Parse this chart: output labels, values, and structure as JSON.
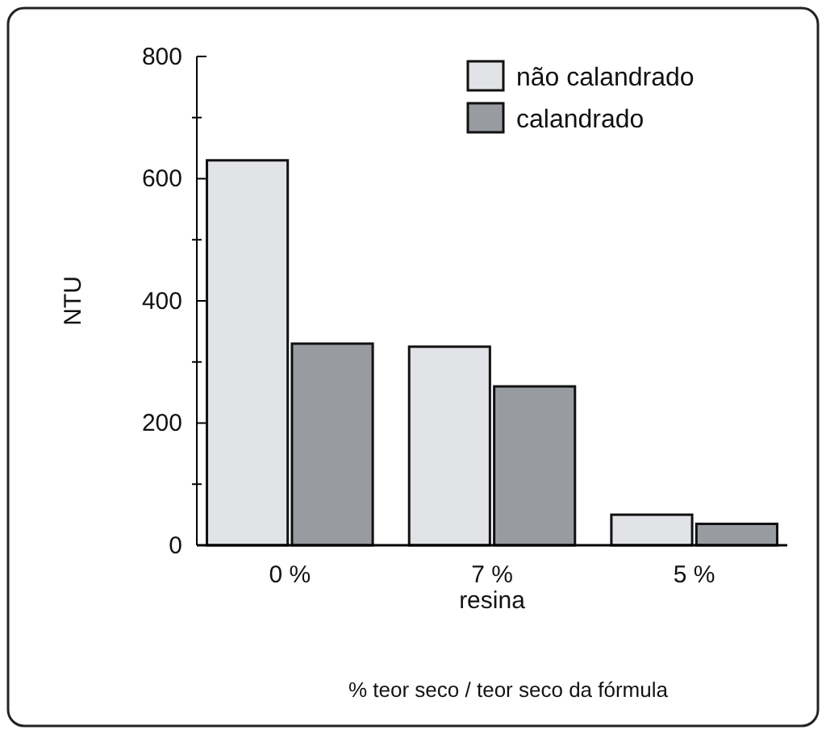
{
  "chart_data": {
    "type": "bar",
    "ylabel": "NTU",
    "xlabel": "% teor seco / teor seco da fórmula",
    "categories": [
      "0 %",
      "7 %\nresina",
      "5 %"
    ],
    "series": [
      {
        "name": "não calandrado",
        "color": "#e2e3e6",
        "values": [
          630,
          325,
          50
        ]
      },
      {
        "name": "calandrado",
        "color": "#989ca1",
        "values": [
          330,
          260,
          35
        ]
      }
    ],
    "ylim": [
      0,
      800
    ],
    "yticks": [
      0,
      {
        "value": 100,
        "label": null
      },
      200,
      {
        "value": 300,
        "label": null
      },
      400,
      {
        "value": 500,
        "label": null
      },
      600,
      {
        "value": 700,
        "label": null
      },
      800
    ],
    "grid": false,
    "legend": "top right"
  }
}
